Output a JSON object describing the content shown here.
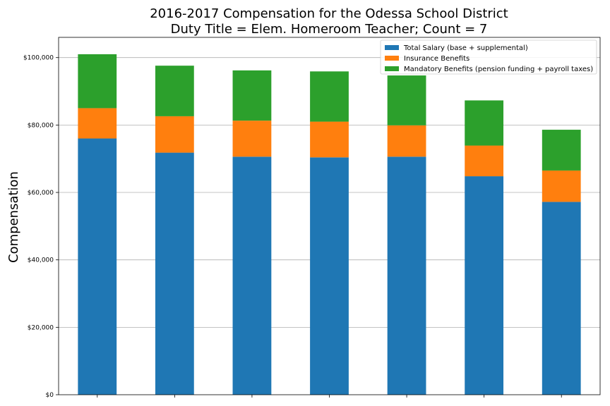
{
  "chart_data": {
    "type": "bar",
    "stacked": true,
    "title_lines": [
      "2016-2017 Compensation for the Odessa School District",
      "Duty Title = Elem. Homeroom Teacher; Count = 7"
    ],
    "ylabel": "Compensation",
    "xlabel": "",
    "ylim": [
      0,
      106000
    ],
    "yticks": [
      {
        "value": 0,
        "label": "$0"
      },
      {
        "value": 20000,
        "label": "$20,000"
      },
      {
        "value": 40000,
        "label": "$40,000"
      },
      {
        "value": 60000,
        "label": "$60,000"
      },
      {
        "value": 80000,
        "label": "$80,000"
      },
      {
        "value": 100000,
        "label": "$100,000"
      }
    ],
    "grid": "horizontal",
    "legend_position": "top-right",
    "category_count": 7,
    "series": [
      {
        "name": "Total Salary (base + supplemental)",
        "color": "#1f77b4",
        "values": [
          76000,
          71800,
          70600,
          70400,
          70600,
          64800,
          57200
        ]
      },
      {
        "name": "Insurance Benefits",
        "color": "#ff7f0e",
        "values": [
          9000,
          10800,
          10700,
          10600,
          9300,
          9100,
          9300
        ]
      },
      {
        "name": "Mandatory Benefits (pension funding + payroll taxes)",
        "color": "#2ca02c",
        "values": [
          16000,
          15000,
          14900,
          14900,
          14800,
          13400,
          12100
        ]
      }
    ]
  }
}
